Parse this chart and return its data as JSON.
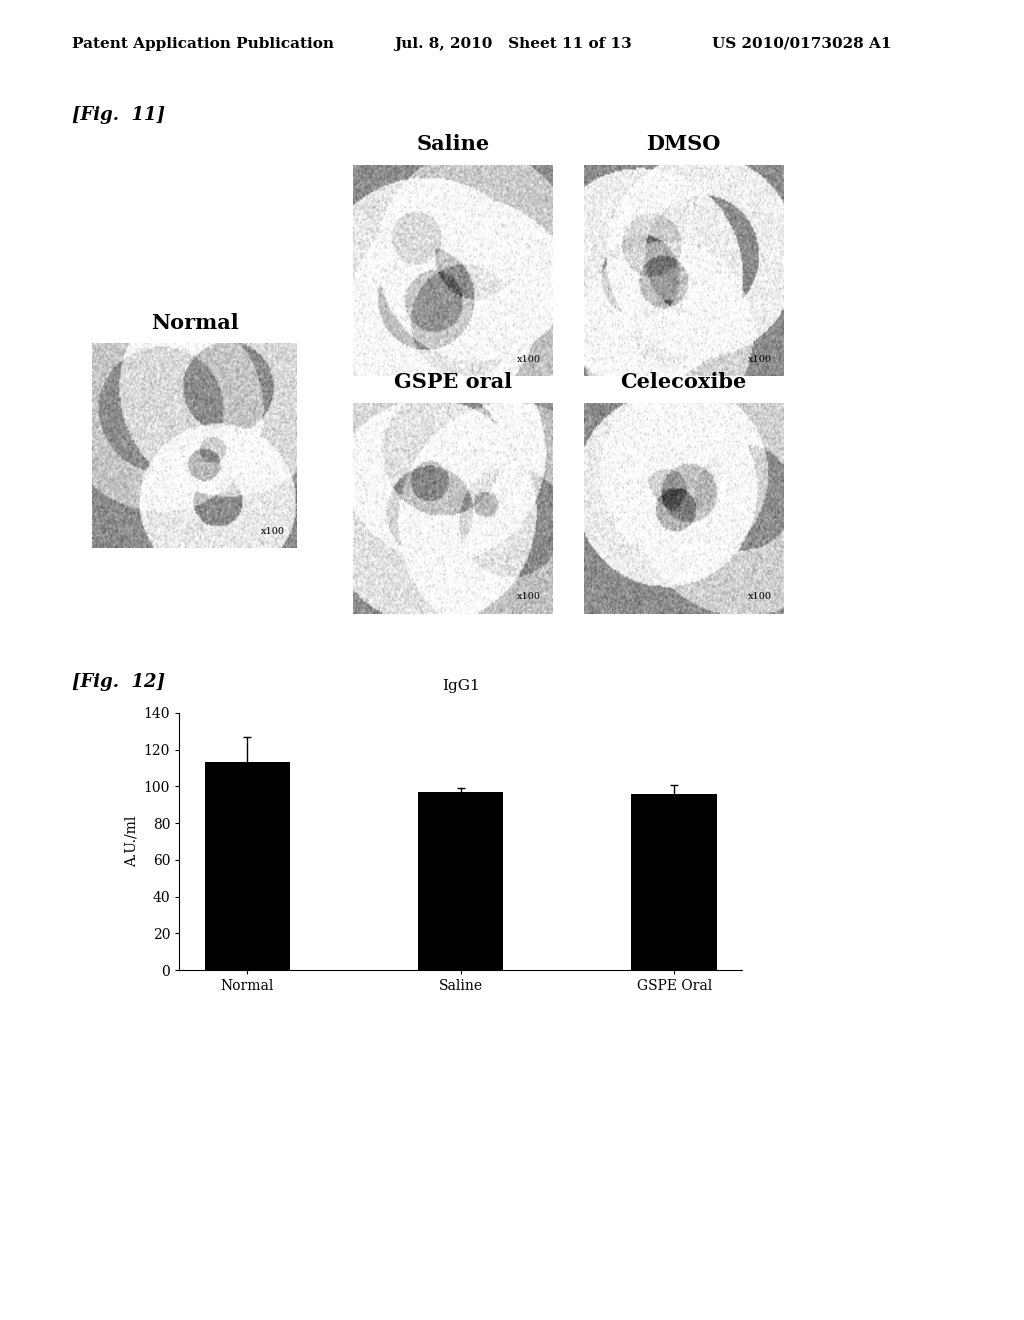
{
  "header_left": "Patent Application Publication",
  "header_mid": "Jul. 8, 2010   Sheet 11 of 13",
  "header_right": "US 2010/0173028 A1",
  "fig11_label": "[Fig.  11]",
  "fig12_label": "[Fig.  12]",
  "panel_labels": {
    "Normal": "Normal",
    "Saline": "Saline",
    "DMSO": "DMSO",
    "GSPE_oral": "GSPE oral",
    "Celecoxibe": "Celecoxibe"
  },
  "x100_label": "x100",
  "bar_title": "IgG1",
  "bar_categories": [
    "Normal",
    "Saline",
    "GSPE Oral"
  ],
  "bar_values": [
    113.0,
    97.0,
    96.0
  ],
  "bar_errors": [
    14.0,
    2.0,
    5.0
  ],
  "bar_color": "#000000",
  "ylabel": "A.U./ml",
  "ylim": [
    0,
    140
  ],
  "yticks": [
    0,
    20,
    40,
    60,
    80,
    100,
    120,
    140
  ],
  "background_color": "#ffffff",
  "header_font_size": 11,
  "label_font_size": 13,
  "panel_label_font_size": 15,
  "bar_title_font_size": 11,
  "axis_font_size": 10
}
